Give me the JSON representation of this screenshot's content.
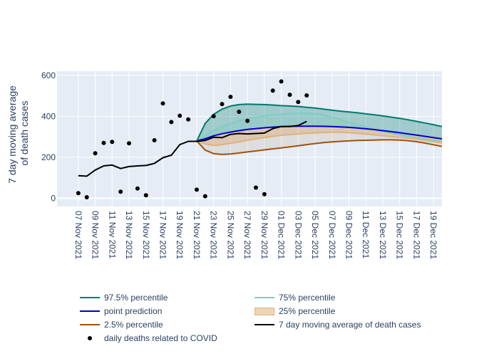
{
  "chart_data": {
    "type": "line",
    "ylabel_lines": [
      "7 day moving average",
      "of death cases"
    ],
    "ylim": [
      -40,
      620
    ],
    "y_ticks": [
      0,
      200,
      400,
      600
    ],
    "x_start": "2021-11-06",
    "x_end": "2021-12-20",
    "x_tick_labels": [
      "07 Nov 2021",
      "09 Nov 2021",
      "11 Nov 2021",
      "13 Nov 2021",
      "15 Nov 2021",
      "17 Nov 2021",
      "19 Nov 2021",
      "21 Nov 2021",
      "23 Nov 2021",
      "25 Nov 2021",
      "27 Nov 2021",
      "29 Nov 2021",
      "01 Dec 2021",
      "03 Dec 2021",
      "05 Dec 2021",
      "07 Dec 2021",
      "09 Dec 2021",
      "11 Dec 2021",
      "13 Dec 2021",
      "15 Dec 2021",
      "17 Dec 2021",
      "19 Dec 2021"
    ],
    "x_tick_dates": [
      "2021-11-07",
      "2021-11-09",
      "2021-11-11",
      "2021-11-13",
      "2021-11-15",
      "2021-11-17",
      "2021-11-19",
      "2021-11-21",
      "2021-11-23",
      "2021-11-25",
      "2021-11-27",
      "2021-11-29",
      "2021-12-01",
      "2021-12-03",
      "2021-12-05",
      "2021-12-07",
      "2021-12-09",
      "2021-12-11",
      "2021-12-13",
      "2021-12-15",
      "2021-12-17",
      "2021-12-19"
    ],
    "grid": true,
    "plot_background": "#e5ecf6",
    "series": [
      {
        "name": "97.5% percentile",
        "color": "#007a6a",
        "kind": "band-upper",
        "fill": "rgba(0,122,106,0.30)",
        "x": [
          "2021-11-21",
          "2021-11-22",
          "2021-11-23",
          "2021-11-24",
          "2021-11-25",
          "2021-11-26",
          "2021-11-27",
          "2021-11-28",
          "2021-11-29",
          "2021-11-30",
          "2021-12-01",
          "2021-12-02",
          "2021-12-03",
          "2021-12-04",
          "2021-12-05",
          "2021-12-06",
          "2021-12-07",
          "2021-12-08",
          "2021-12-09",
          "2021-12-10",
          "2021-12-11",
          "2021-12-12",
          "2021-12-13",
          "2021-12-14",
          "2021-12-15",
          "2021-12-16",
          "2021-12-17",
          "2021-12-18",
          "2021-12-19",
          "2021-12-20"
        ],
        "y": [
          280,
          365,
          410,
          435,
          450,
          457,
          459,
          458,
          457,
          455,
          452,
          450,
          448,
          444,
          440,
          435,
          430,
          425,
          421,
          417,
          412,
          407,
          402,
          396,
          390,
          383,
          375,
          367,
          359,
          350
        ]
      },
      {
        "name": "75% percentile",
        "color": "#7fcdc4",
        "kind": "band-upper",
        "fill": "rgba(127,205,196,0.25)",
        "x": [
          "2021-11-21",
          "2021-11-22",
          "2021-11-23",
          "2021-11-24",
          "2021-11-25",
          "2021-11-26",
          "2021-11-27",
          "2021-11-28",
          "2021-11-29",
          "2021-11-30",
          "2021-12-01",
          "2021-12-02",
          "2021-12-03",
          "2021-12-04",
          "2021-12-05",
          "2021-12-06",
          "2021-12-07",
          "2021-12-08",
          "2021-12-09",
          "2021-12-10",
          "2021-12-11",
          "2021-12-12",
          "2021-12-13",
          "2021-12-14",
          "2021-12-15",
          "2021-12-16",
          "2021-12-17",
          "2021-12-18",
          "2021-12-19",
          "2021-12-20"
        ],
        "y": [
          280,
          305,
          330,
          350,
          365,
          378,
          388,
          396,
          402,
          406,
          410,
          413,
          415,
          415,
          412,
          406,
          396,
          384,
          372,
          360,
          348,
          336,
          326,
          318,
          310,
          302,
          295,
          288,
          282,
          276
        ]
      },
      {
        "name": "point prediction",
        "color": "#0000cc",
        "kind": "line",
        "x": [
          "2021-11-21",
          "2021-11-22",
          "2021-11-23",
          "2021-11-24",
          "2021-11-25",
          "2021-11-26",
          "2021-11-27",
          "2021-11-28",
          "2021-11-29",
          "2021-11-30",
          "2021-12-01",
          "2021-12-02",
          "2021-12-03",
          "2021-12-04",
          "2021-12-05",
          "2021-12-06",
          "2021-12-07",
          "2021-12-08",
          "2021-12-09",
          "2021-12-10",
          "2021-12-11",
          "2021-12-12",
          "2021-12-13",
          "2021-12-14",
          "2021-12-15",
          "2021-12-16",
          "2021-12-17",
          "2021-12-18",
          "2021-12-19",
          "2021-12-20"
        ],
        "y": [
          280,
          290,
          305,
          315,
          323,
          330,
          336,
          340,
          344,
          347,
          350,
          351,
          352,
          352,
          352,
          351,
          350,
          348,
          346,
          343,
          339,
          335,
          330,
          325,
          320,
          314,
          308,
          302,
          296,
          290
        ]
      },
      {
        "name": "25% percentile",
        "color": "#e0b27a",
        "kind": "band-lower",
        "fill": "rgba(224,178,122,0.40)",
        "x": [
          "2021-11-21",
          "2021-11-22",
          "2021-11-23",
          "2021-11-24",
          "2021-11-25",
          "2021-11-26",
          "2021-11-27",
          "2021-11-28",
          "2021-11-29",
          "2021-11-30",
          "2021-12-01",
          "2021-12-02",
          "2021-12-03",
          "2021-12-04",
          "2021-12-05",
          "2021-12-06",
          "2021-12-07",
          "2021-12-08",
          "2021-12-09",
          "2021-12-10",
          "2021-12-11",
          "2021-12-12",
          "2021-12-13",
          "2021-12-14",
          "2021-12-15",
          "2021-12-16",
          "2021-12-17",
          "2021-12-18",
          "2021-12-19",
          "2021-12-20"
        ],
        "y": [
          280,
          265,
          258,
          262,
          268,
          275,
          283,
          290,
          296,
          302,
          307,
          311,
          314,
          317,
          319,
          321,
          322,
          322,
          320,
          317,
          313,
          309,
          305,
          301,
          297,
          293,
          288,
          282,
          276,
          270
        ]
      },
      {
        "name": "2.5% percentile",
        "color": "#a0520a",
        "kind": "band-lower",
        "fill": "rgba(160,82,10,0.10)",
        "x": [
          "2021-11-21",
          "2021-11-22",
          "2021-11-23",
          "2021-11-24",
          "2021-11-25",
          "2021-11-26",
          "2021-11-27",
          "2021-11-28",
          "2021-11-29",
          "2021-11-30",
          "2021-12-01",
          "2021-12-02",
          "2021-12-03",
          "2021-12-04",
          "2021-12-05",
          "2021-12-06",
          "2021-12-07",
          "2021-12-08",
          "2021-12-09",
          "2021-12-10",
          "2021-12-11",
          "2021-12-12",
          "2021-12-13",
          "2021-12-14",
          "2021-12-15",
          "2021-12-16",
          "2021-12-17",
          "2021-12-18",
          "2021-12-19",
          "2021-12-20"
        ],
        "y": [
          280,
          235,
          218,
          214,
          216,
          221,
          226,
          231,
          236,
          241,
          246,
          251,
          256,
          262,
          267,
          272,
          275,
          278,
          280,
          282,
          283,
          284,
          285,
          285,
          284,
          281,
          276,
          269,
          261,
          253
        ]
      },
      {
        "name": "7 day moving average of death cases",
        "color": "#000000",
        "kind": "line",
        "x": [
          "2021-11-07",
          "2021-11-08",
          "2021-11-09",
          "2021-11-10",
          "2021-11-11",
          "2021-11-12",
          "2021-11-13",
          "2021-11-14",
          "2021-11-15",
          "2021-11-16",
          "2021-11-17",
          "2021-11-18",
          "2021-11-19",
          "2021-11-20",
          "2021-11-21",
          "2021-11-22",
          "2021-11-23",
          "2021-11-24",
          "2021-11-25",
          "2021-11-26",
          "2021-11-27",
          "2021-11-28",
          "2021-11-29",
          "2021-11-30",
          "2021-12-01",
          "2021-12-02",
          "2021-12-03",
          "2021-12-04"
        ],
        "y": [
          110,
          108,
          138,
          158,
          162,
          145,
          155,
          158,
          160,
          170,
          198,
          210,
          262,
          278,
          278,
          282,
          298,
          296,
          312,
          316,
          314,
          316,
          318,
          340,
          350,
          350,
          355,
          375
        ]
      },
      {
        "name": "daily deaths related to COVID",
        "color": "#000000",
        "kind": "markers",
        "x": [
          "2021-11-07",
          "2021-11-08",
          "2021-11-09",
          "2021-11-10",
          "2021-11-11",
          "2021-11-12",
          "2021-11-13",
          "2021-11-14",
          "2021-11-15",
          "2021-11-16",
          "2021-11-17",
          "2021-11-18",
          "2021-11-19",
          "2021-11-20",
          "2021-11-21",
          "2021-11-22",
          "2021-11-23",
          "2021-11-24",
          "2021-11-25",
          "2021-11-26",
          "2021-11-27",
          "2021-11-28",
          "2021-11-29",
          "2021-11-30",
          "2021-12-01",
          "2021-12-02",
          "2021-12-03",
          "2021-12-04"
        ],
        "y": [
          25,
          5,
          220,
          270,
          275,
          32,
          268,
          48,
          15,
          283,
          463,
          372,
          403,
          385,
          42,
          10,
          400,
          460,
          495,
          422,
          378,
          52,
          20,
          525,
          570,
          505,
          470,
          502
        ]
      }
    ],
    "legend_order": [
      0,
      2,
      4,
      6,
      1,
      3,
      5
    ],
    "legend_kinds": [
      "line",
      "line",
      "line",
      "markers",
      "line",
      "fill",
      "line"
    ]
  }
}
